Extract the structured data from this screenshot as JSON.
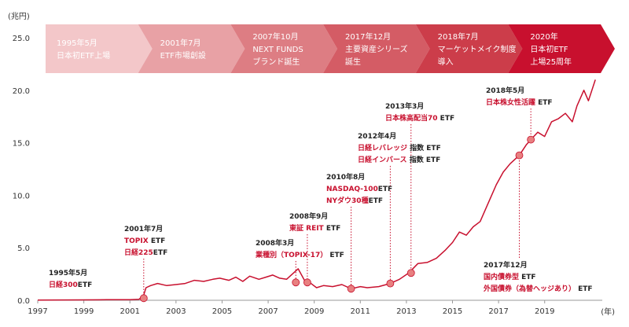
{
  "chart_data": {
    "type": "line",
    "title": "",
    "y_unit": "(兆円)",
    "x_unit": "(年)",
    "ylim": [
      0,
      25
    ],
    "xlim": [
      1997,
      2021.5
    ],
    "y_ticks": [
      "0.0",
      "5.0",
      "10.0",
      "15.0",
      "20.0",
      "25.0"
    ],
    "x_ticks": [
      "1997",
      "1999",
      "2001",
      "2003",
      "2005",
      "2007",
      "2009",
      "2011",
      "2013",
      "2015",
      "2017",
      "2019"
    ],
    "grid": false,
    "colors": {
      "line": "#c8102e",
      "marker": "#e88080",
      "accent": "#c8102e",
      "guide": "#c8102e"
    },
    "series": [
      {
        "values": [
          [
            1997,
            0.02
          ],
          [
            1998,
            0.03
          ],
          [
            1999,
            0.04
          ],
          [
            2000,
            0.05
          ],
          [
            2001,
            0.05
          ],
          [
            2001.4,
            0.1
          ],
          [
            2001.6,
            0.5
          ],
          [
            2001.7,
            1.2
          ],
          [
            2001.9,
            1.4
          ],
          [
            2002.2,
            1.6
          ],
          [
            2002.6,
            1.4
          ],
          [
            2003.0,
            1.5
          ],
          [
            2003.4,
            1.6
          ],
          [
            2003.8,
            1.9
          ],
          [
            2004.2,
            1.8
          ],
          [
            2004.6,
            2.0
          ],
          [
            2004.9,
            2.1
          ],
          [
            2005.3,
            1.9
          ],
          [
            2005.6,
            2.2
          ],
          [
            2005.9,
            1.8
          ],
          [
            2006.2,
            2.3
          ],
          [
            2006.6,
            2.0
          ],
          [
            2006.9,
            2.2
          ],
          [
            2007.2,
            2.4
          ],
          [
            2007.5,
            2.1
          ],
          [
            2007.8,
            2.0
          ],
          [
            2008.0,
            2.4
          ],
          [
            2008.3,
            3.0
          ],
          [
            2008.6,
            1.8
          ],
          [
            2008.8,
            1.7
          ],
          [
            2009.1,
            1.2
          ],
          [
            2009.4,
            1.4
          ],
          [
            2009.8,
            1.3
          ],
          [
            2010.2,
            1.5
          ],
          [
            2010.6,
            1.1
          ],
          [
            2011.0,
            1.3
          ],
          [
            2011.3,
            1.2
          ],
          [
            2011.8,
            1.3
          ],
          [
            2012.3,
            1.6
          ],
          [
            2012.7,
            2.0
          ],
          [
            2013.1,
            2.6
          ],
          [
            2013.5,
            3.5
          ],
          [
            2013.9,
            3.6
          ],
          [
            2014.3,
            4.0
          ],
          [
            2014.7,
            4.8
          ],
          [
            2015.0,
            5.5
          ],
          [
            2015.3,
            6.5
          ],
          [
            2015.6,
            6.2
          ],
          [
            2015.9,
            7.0
          ],
          [
            2016.2,
            7.5
          ],
          [
            2016.6,
            9.5
          ],
          [
            2016.9,
            11.0
          ],
          [
            2017.2,
            12.2
          ],
          [
            2017.5,
            13.0
          ],
          [
            2017.9,
            13.8
          ],
          [
            2018.2,
            14.8
          ],
          [
            2018.4,
            15.3
          ],
          [
            2018.7,
            16.0
          ],
          [
            2019.0,
            15.6
          ],
          [
            2019.3,
            17.0
          ],
          [
            2019.6,
            17.3
          ],
          [
            2019.9,
            17.8
          ],
          [
            2020.2,
            17.0
          ],
          [
            2020.4,
            18.5
          ],
          [
            2020.7,
            20.0
          ],
          [
            2020.9,
            19.0
          ],
          [
            2021.2,
            21.0
          ]
        ]
      }
    ],
    "phases": [
      {
        "lines": [
          "1995年5月",
          "日本初ETF上場"
        ],
        "color": "#f3c7c9"
      },
      {
        "lines": [
          "2001年7月",
          "ETF市場創設"
        ],
        "color": "#e8a1a5"
      },
      {
        "lines": [
          "2007年10月",
          "NEXT FUNDS",
          "ブランド誕生"
        ],
        "color": "#dd7d83"
      },
      {
        "lines": [
          "2017年12月",
          "主要資産シリーズ",
          "誕生"
        ],
        "color": "#d45c65"
      },
      {
        "lines": [
          "2018年7月",
          "マーケットメイク制度",
          "導入"
        ],
        "color": "#cc3d4a"
      },
      {
        "lines": [
          "2020年",
          "日本初ETF",
          "上場25周年"
        ],
        "color": "#c8102e"
      }
    ],
    "annotations": [
      {
        "x": 1997.5,
        "lines": [
          [
            {
              "t": "1995年5月",
              "c": "date"
            }
          ],
          [
            {
              "t": "日経300",
              "c": "red"
            },
            {
              "t": "ETF",
              "c": "black"
            }
          ]
        ]
      },
      {
        "x": 2001.6,
        "marker_y": 0.2,
        "lines": [
          [
            {
              "t": "2001年7月",
              "c": "date"
            }
          ],
          [
            {
              "t": "TOPIX",
              "c": "red"
            },
            {
              "t": " ETF",
              "c": "black"
            }
          ],
          [
            {
              "t": "日経225",
              "c": "red"
            },
            {
              "t": "ETF",
              "c": "black"
            }
          ]
        ]
      },
      {
        "x": 2008.2,
        "marker_y": 1.7,
        "lines": [
          [
            {
              "t": "2008年3月",
              "c": "date"
            }
          ],
          [
            {
              "t": "業種別（TOPIX-17）",
              "c": "red"
            },
            {
              "t": " ETF",
              "c": "black"
            }
          ]
        ]
      },
      {
        "x": 2008.7,
        "marker_y": 1.7,
        "lines": [
          [
            {
              "t": "2008年9月",
              "c": "date"
            }
          ],
          [
            {
              "t": "東証 REIT",
              "c": "red"
            },
            {
              "t": " ETF",
              "c": "black"
            }
          ]
        ]
      },
      {
        "x": 2010.6,
        "marker_y": 1.1,
        "lines": [
          [
            {
              "t": "2010年8月",
              "c": "date"
            }
          ],
          [
            {
              "t": "NASDAQ-100",
              "c": "red"
            },
            {
              "t": "ETF",
              "c": "black"
            }
          ],
          [
            {
              "t": "NYダウ30種",
              "c": "red"
            },
            {
              "t": "ETF",
              "c": "black"
            }
          ]
        ]
      },
      {
        "x": 2012.3,
        "marker_y": 1.6,
        "lines": [
          [
            {
              "t": "2012年4月",
              "c": "date"
            }
          ],
          [
            {
              "t": "日経レバレッジ",
              "c": "red"
            },
            {
              "t": " 指数 ETF",
              "c": "black"
            }
          ],
          [
            {
              "t": "日経インバース",
              "c": "red"
            },
            {
              "t": " 指数 ETF",
              "c": "black"
            }
          ]
        ]
      },
      {
        "x": 2013.2,
        "marker_y": 2.6,
        "lines": [
          [
            {
              "t": "2013年3月",
              "c": "date"
            }
          ],
          [
            {
              "t": "日本株高配当70",
              "c": "red"
            },
            {
              "t": " ETF",
              "c": "black"
            }
          ]
        ]
      },
      {
        "x": 2017.9,
        "marker_y": 13.8,
        "lines": [
          [
            {
              "t": "2017年12月",
              "c": "date"
            }
          ],
          [
            {
              "t": "国内債券型",
              "c": "red"
            },
            {
              "t": " ETF",
              "c": "black"
            }
          ],
          [
            {
              "t": "外国債券（為替ヘッジあり）",
              "c": "red"
            },
            {
              "t": " ETF",
              "c": "black"
            }
          ]
        ]
      },
      {
        "x": 2018.4,
        "marker_y": 15.3,
        "lines": [
          [
            {
              "t": "2018年5月",
              "c": "date"
            }
          ],
          [
            {
              "t": "日本株女性活躍",
              "c": "red"
            },
            {
              "t": " ETF",
              "c": "black"
            }
          ]
        ]
      }
    ]
  }
}
